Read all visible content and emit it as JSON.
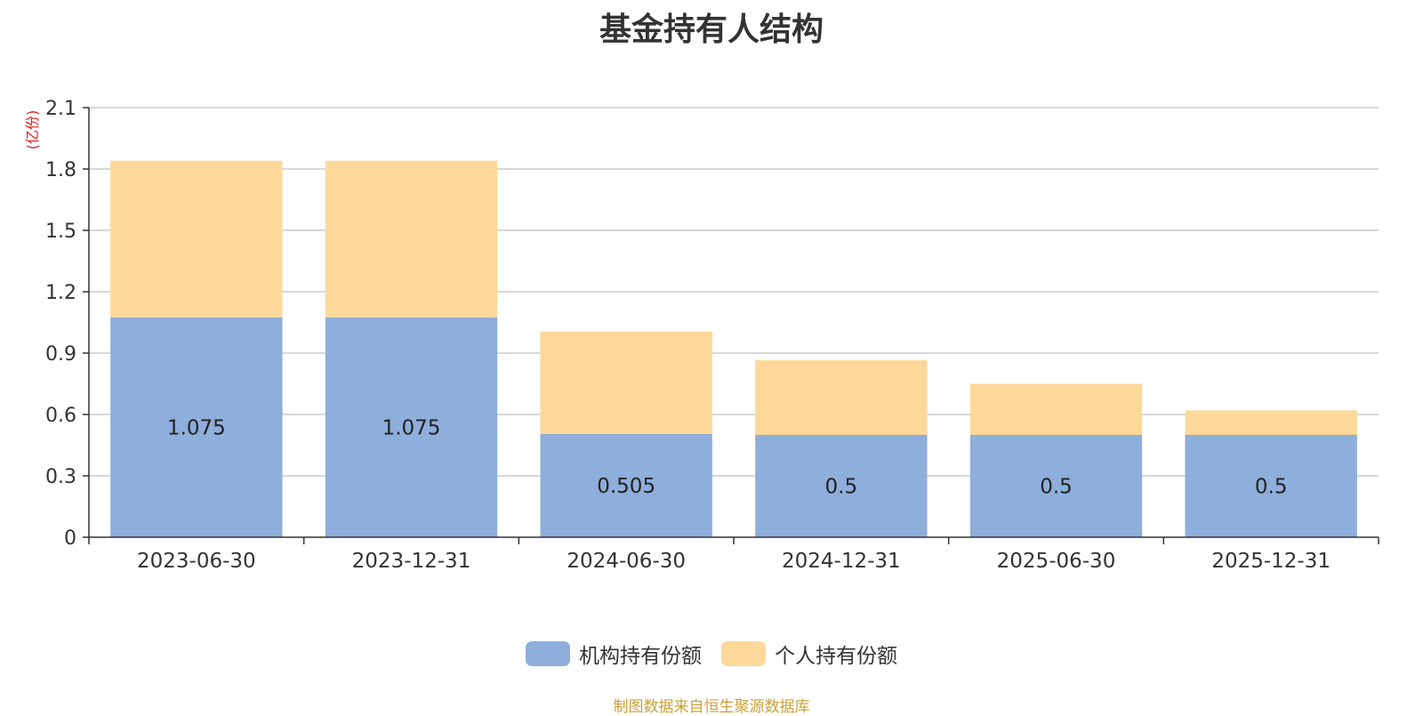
{
  "chart_data": {
    "type": "bar",
    "stacked": true,
    "title": "基金持有人结构",
    "y_unit": "(亿份)",
    "categories": [
      "2023-06-30",
      "2023-12-31",
      "2024-06-30",
      "2024-12-31",
      "2025-06-30",
      "2025-12-31"
    ],
    "series": [
      {
        "name": "机构持有份额",
        "color": "#8eaedb",
        "values": [
          1.075,
          1.075,
          0.505,
          0.5,
          0.5,
          0.5
        ],
        "labels": [
          "1.075",
          "1.075",
          "0.505",
          "0.5",
          "0.5",
          "0.5"
        ]
      },
      {
        "name": "个人持有份额",
        "color": "#fdd898",
        "values": [
          0.765,
          0.765,
          0.5,
          0.365,
          0.25,
          0.12
        ]
      }
    ],
    "ylim": [
      0,
      2.1
    ],
    "yticks": [
      "0",
      "0.3",
      "0.6",
      "0.9",
      "1.2",
      "1.5",
      "1.8",
      "2.1"
    ],
    "grid": true,
    "legend_position": "bottom"
  },
  "footer": {
    "source": "制图数据来自恒生聚源数据库"
  }
}
